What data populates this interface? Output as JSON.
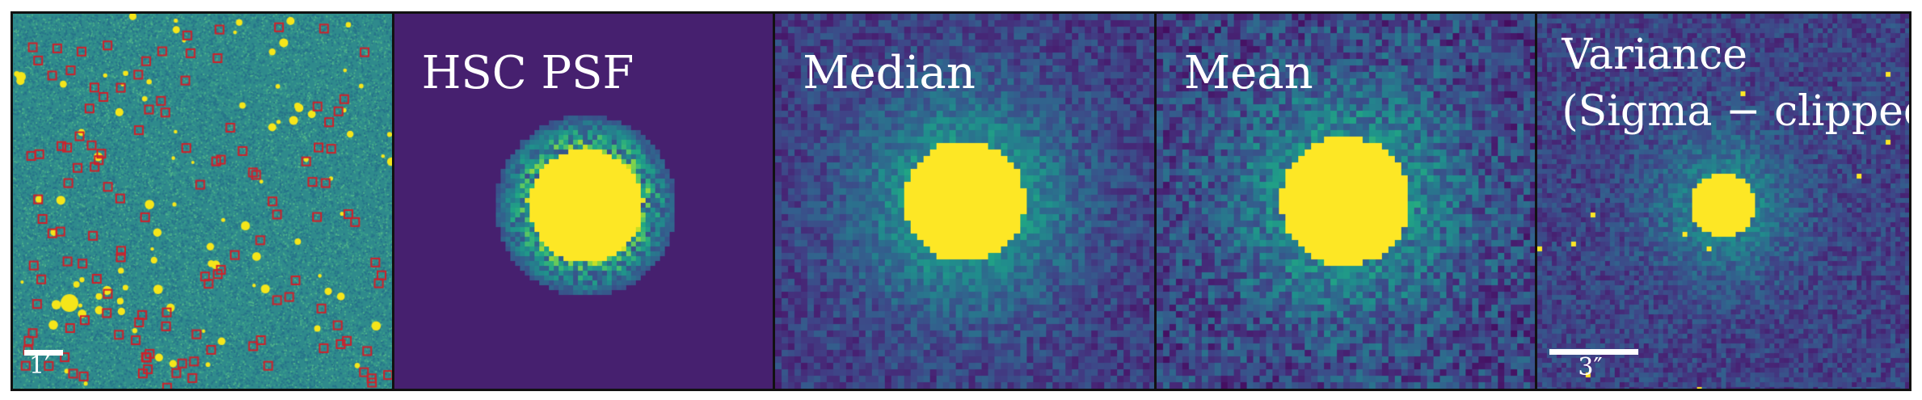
{
  "panels": [
    {
      "id": "field",
      "label": "",
      "scale_label": "1′",
      "colors": {
        "bg": "#2f8a8c",
        "marker": "#d0202a",
        "star": "#f5e61a"
      }
    },
    {
      "id": "hsc-psf",
      "label": "HSC PSF",
      "colors": {
        "bg": "#46206f",
        "core": "#fde725"
      }
    },
    {
      "id": "median",
      "label": "Median",
      "colors": {
        "bg": "#3b4e8a",
        "core": "#fde725"
      }
    },
    {
      "id": "mean",
      "label": "Mean",
      "colors": {
        "bg": "#3a5a8c",
        "core": "#fde725"
      }
    },
    {
      "id": "variance",
      "label": "Variance\n(Sigma − clipped)",
      "scale_label": "3″",
      "colors": {
        "bg": "#3a4d88",
        "core": "#fde725"
      }
    }
  ]
}
